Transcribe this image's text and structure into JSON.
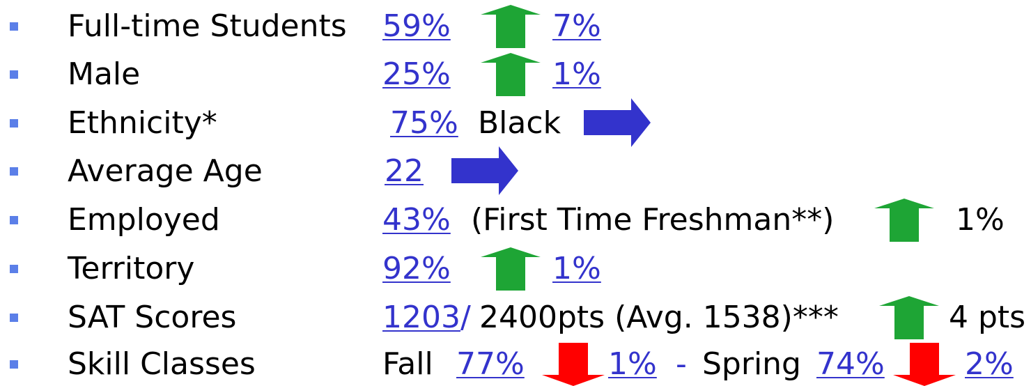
{
  "rows": [
    {
      "label": "Full-time Students",
      "parts": [
        "59%",
        "7%"
      ]
    },
    {
      "label": "Male",
      "parts": [
        "25%",
        "1%"
      ]
    },
    {
      "label": "Ethnicity*",
      "parts": [
        "75%",
        "Black"
      ]
    },
    {
      "label": "Average Age",
      "parts": [
        "22"
      ]
    },
    {
      "label": "Employed",
      "parts": [
        "43%",
        "(First Time Freshman**)",
        "1%"
      ]
    },
    {
      "label": "Territory",
      "parts": [
        "92%",
        "1%"
      ]
    },
    {
      "label": "SAT Scores",
      "parts": [
        "1203",
        "/",
        "2400pts (Avg. 1538)***",
        "4 pts"
      ]
    },
    {
      "label": "Skill Classes",
      "parts": [
        "Fall",
        "77%",
        "1%",
        "-",
        "Spring",
        "74%",
        "2%"
      ]
    }
  ]
}
